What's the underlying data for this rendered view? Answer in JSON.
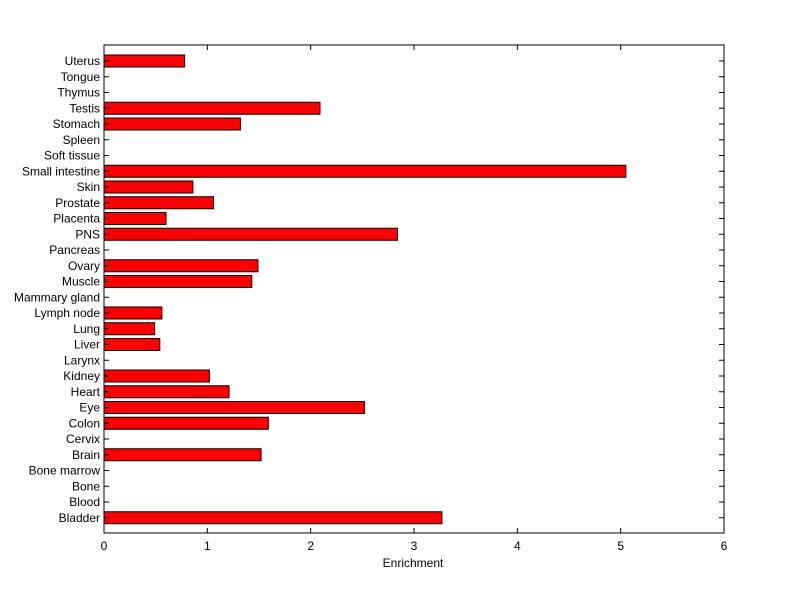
{
  "chart_data": {
    "type": "bar",
    "orientation": "horizontal",
    "categories": [
      "Uterus",
      "Tongue",
      "Thymus",
      "Testis",
      "Stomach",
      "Spleen",
      "Soft tissue",
      "Small intestine",
      "Skin",
      "Prostate",
      "Placenta",
      "PNS",
      "Pancreas",
      "Ovary",
      "Muscle",
      "Mammary gland",
      "Lymph node",
      "Lung",
      "Liver",
      "Larynx",
      "Kidney",
      "Heart",
      "Eye",
      "Colon",
      "Cervix",
      "Brain",
      "Bone marrow",
      "Bone",
      "Blood",
      "Bladder"
    ],
    "values": [
      0.78,
      0,
      0,
      2.09,
      1.32,
      0,
      0,
      5.05,
      0.86,
      1.06,
      0.6,
      2.84,
      0,
      1.49,
      1.43,
      0,
      0.56,
      0.49,
      0.54,
      0,
      1.02,
      1.21,
      2.52,
      1.59,
      0,
      1.52,
      0,
      0,
      0,
      3.27
    ],
    "xlabel": "Enrichment",
    "ylabel": "",
    "title": "",
    "xlim": [
      0,
      6
    ],
    "xticks": [
      0,
      1,
      2,
      3,
      4,
      5,
      6
    ],
    "grid": false,
    "bar_color": "#ff0000",
    "bar_edge_color": "#000000"
  }
}
